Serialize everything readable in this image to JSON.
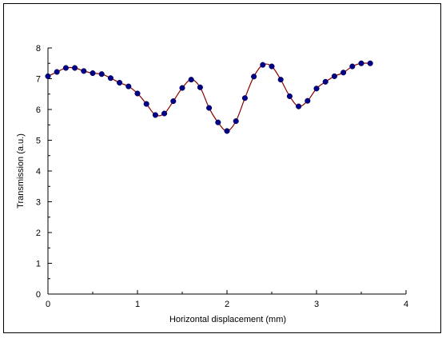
{
  "chart_data": {
    "type": "line",
    "title": "",
    "xlabel": "Horizontal displacement (mm)",
    "ylabel": "Transmission (a.u.)",
    "xlim": [
      0,
      4
    ],
    "ylim": [
      0,
      8
    ],
    "xticks": [
      0,
      1,
      2,
      3,
      4
    ],
    "yticks": [
      0,
      1,
      2,
      3,
      4,
      5,
      6,
      7,
      8
    ],
    "grid": false,
    "legend": "none",
    "line_color": "#8b0000",
    "marker_color": "#00008b",
    "series": [
      {
        "x": [
          0,
          0.1,
          0.2,
          0.3,
          0.4,
          0.5,
          0.6,
          0.7,
          0.8,
          0.9,
          1.0,
          1.1,
          1.2,
          1.3,
          1.4,
          1.5,
          1.6,
          1.7,
          1.8,
          1.9,
          2.0,
          2.1,
          2.2,
          2.3,
          2.4,
          2.5,
          2.6,
          2.7,
          2.8,
          2.9,
          3.0,
          3.1,
          3.2,
          3.3,
          3.4,
          3.5,
          3.6
        ],
        "y": [
          7.08,
          7.22,
          7.35,
          7.35,
          7.25,
          7.18,
          7.15,
          7.02,
          6.87,
          6.75,
          6.52,
          6.18,
          5.82,
          5.87,
          6.27,
          6.7,
          6.97,
          6.72,
          6.05,
          5.58,
          5.3,
          5.62,
          6.37,
          7.07,
          7.45,
          7.4,
          6.97,
          6.43,
          6.1,
          6.28,
          6.68,
          6.9,
          7.08,
          7.2,
          7.4,
          7.5,
          7.5
        ]
      }
    ]
  }
}
